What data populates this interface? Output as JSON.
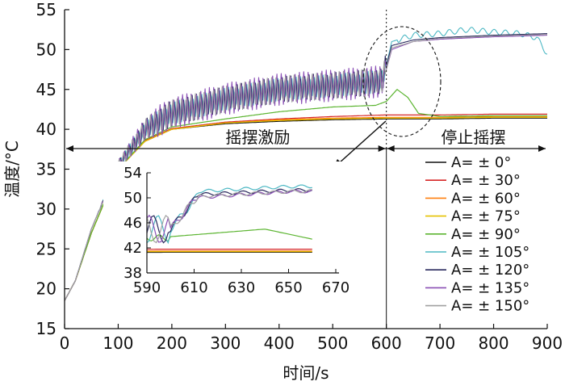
{
  "chart_data": {
    "type": "line",
    "xlabel": "时间/s",
    "ylabel": "温度/°C",
    "xlim": [
      0,
      900
    ],
    "ylim": [
      15,
      55
    ],
    "x_ticks": [
      0,
      100,
      200,
      300,
      400,
      500,
      600,
      700,
      800,
      900
    ],
    "y_ticks": [
      15,
      20,
      25,
      30,
      35,
      40,
      45,
      50,
      55
    ],
    "grid": false,
    "legend_position": "bottom-right",
    "phase_boundary_x": 600,
    "phase_labels": [
      "摇摆激励",
      "停止摇摆"
    ],
    "series": [
      {
        "name": "A= ± 0°",
        "color": "#111111",
        "x": [
          0,
          20,
          50,
          100,
          150,
          200,
          300,
          400,
          500,
          600,
          700,
          800,
          900
        ],
        "y": [
          18.5,
          21,
          27,
          35,
          38.5,
          40,
          40.7,
          41,
          41.2,
          41.3,
          41.3,
          41.4,
          41.4
        ]
      },
      {
        "name": "A= ± 30°",
        "color": "#d62728",
        "x": [
          0,
          20,
          50,
          100,
          150,
          200,
          300,
          400,
          500,
          600,
          700,
          800,
          900
        ],
        "y": [
          18.5,
          21,
          27,
          35,
          38.6,
          40.1,
          40.9,
          41.3,
          41.6,
          41.8,
          41.8,
          41.9,
          41.9
        ]
      },
      {
        "name": "A= ± 60°",
        "color": "#ff7f0e",
        "x": [
          0,
          20,
          50,
          100,
          150,
          200,
          300,
          400,
          500,
          600,
          700,
          800,
          900
        ],
        "y": [
          18.5,
          21,
          27,
          35,
          38.5,
          40,
          40.8,
          41.2,
          41.4,
          41.5,
          41.5,
          41.6,
          41.6
        ]
      },
      {
        "name": "A= ± 75°",
        "color": "#e6c200",
        "x": [
          0,
          20,
          50,
          100,
          150,
          200,
          300,
          400,
          500,
          600,
          700,
          800,
          900
        ],
        "y": [
          18.5,
          21,
          27,
          35,
          38.5,
          40,
          40.8,
          41.1,
          41.3,
          41.4,
          41.4,
          41.5,
          41.5
        ]
      },
      {
        "name": "A= ± 90°",
        "color": "#5cb531",
        "x": [
          0,
          20,
          50,
          100,
          150,
          200,
          300,
          400,
          500,
          580,
          600,
          620,
          640,
          660,
          700,
          800,
          900
        ],
        "y": [
          18.5,
          21,
          27,
          35,
          38.7,
          40.3,
          41.3,
          42.2,
          42.8,
          43,
          43.5,
          45,
          44,
          42,
          41.6,
          41.7,
          41.7
        ]
      },
      {
        "name": "A= ± 105°",
        "color": "#4db8c4",
        "x": [
          0,
          20,
          50,
          100,
          150,
          200,
          300,
          400,
          500,
          590,
          600,
          610,
          650,
          700,
          750,
          800,
          850,
          880,
          900
        ],
        "y": [
          18.5,
          21,
          27.5,
          35.5,
          40,
          42,
          43.8,
          45,
          45.5,
          46,
          48,
          51,
          51.8,
          52,
          52.5,
          52.2,
          52,
          51.5,
          49.5
        ]
      },
      {
        "name": "A= ± 120°",
        "color": "#2a2a5e",
        "x": [
          0,
          20,
          50,
          100,
          150,
          200,
          300,
          400,
          500,
          590,
          600,
          610,
          650,
          700,
          800,
          900
        ],
        "y": [
          18.5,
          21,
          27.5,
          35.5,
          40,
          42,
          43.8,
          45,
          45.5,
          46,
          48,
          50.5,
          51.2,
          51.5,
          51.8,
          52
        ]
      },
      {
        "name": "A= ± 135°",
        "color": "#8a4fb5",
        "x": [
          0,
          20,
          50,
          100,
          150,
          200,
          300,
          400,
          500,
          590,
          600,
          610,
          650,
          700,
          800,
          900
        ],
        "y": [
          18.5,
          21,
          27.5,
          35.5,
          40,
          42,
          43.8,
          45,
          45.5,
          46,
          47.5,
          50,
          51,
          51.3,
          51.6,
          51.8
        ]
      },
      {
        "name": "A= ± 150°",
        "color": "#a0a0a0",
        "x": [
          0,
          20,
          50,
          100,
          150,
          200,
          300,
          400,
          500,
          590,
          600,
          610,
          650,
          700,
          800,
          900
        ],
        "y": [
          18.5,
          21,
          27.5,
          35.5,
          40,
          42,
          43.8,
          45,
          45.5,
          46,
          47.5,
          50.2,
          51,
          51.4,
          51.7,
          51.9
        ]
      }
    ],
    "inset": {
      "xlim": [
        590,
        670
      ],
      "ylim": [
        38,
        54
      ],
      "x_ticks": [
        590,
        610,
        630,
        650,
        670
      ],
      "y_ticks": [
        38,
        42,
        46,
        50,
        54
      ]
    }
  }
}
